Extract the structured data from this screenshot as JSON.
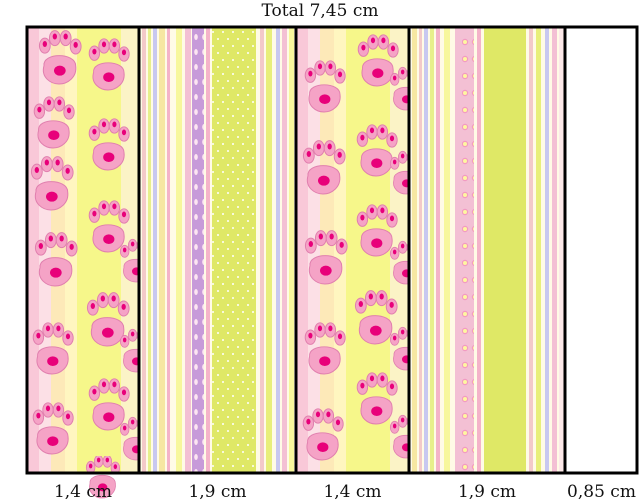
{
  "title": "Total 7,45 cm",
  "colors": {
    "pink": "#f7a8c8",
    "paw_pink": "#f5a3c6",
    "paw_pad": "#e8007a",
    "yellow": "#f6f78a",
    "lime": "#dfe866",
    "lavender": "#c79ad9",
    "outline": "#000000"
  },
  "panels": [
    {
      "width_label": "1,4 cm",
      "pattern": "paws"
    },
    {
      "width_label": "1,9 cm",
      "pattern": "stripes"
    },
    {
      "width_label": "1,4 cm",
      "pattern": "paws"
    },
    {
      "width_label": "1,9 cm",
      "pattern": "stripes"
    },
    {
      "width_label": "0,85 cm",
      "pattern": "blank"
    }
  ]
}
